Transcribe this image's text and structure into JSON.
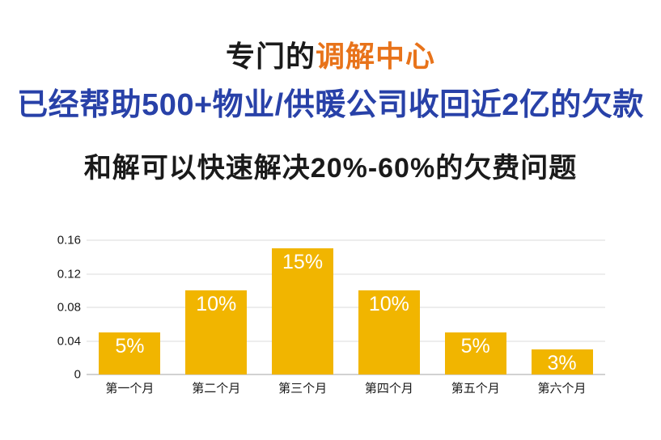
{
  "header": {
    "line1_black": "专门的",
    "line1_orange": "调解中心",
    "line2": "已经帮助500+物业/供暖公司收回近2亿的欠款",
    "line3": "和解可以快速解决20%-60%的欠费问题"
  },
  "colors": {
    "accent_orange": "#E8731A",
    "accent_blue": "#2841A8",
    "text_dark": "#1A1A1A",
    "bar_fill": "#F1B500",
    "bar_label": "#FFFFFF",
    "grid_line": "#DBDBDB",
    "axis_line": "#A6A6A6"
  },
  "chart_data": {
    "type": "bar",
    "categories": [
      "第一个月",
      "第二个月",
      "第三个月",
      "第四个月",
      "第五个月",
      "第六个月"
    ],
    "values": [
      0.05,
      0.1,
      0.15,
      0.1,
      0.05,
      0.03
    ],
    "bar_labels": [
      "5%",
      "10%",
      "15%",
      "10%",
      "5%",
      "3%"
    ],
    "y_ticks": [
      0,
      0.04,
      0.08,
      0.12,
      0.16
    ],
    "y_tick_labels": [
      "0",
      "0.04",
      "0.08",
      "0.12",
      "0.16"
    ],
    "ylim": [
      0,
      0.16
    ],
    "title": "",
    "xlabel": "",
    "ylabel": "",
    "grid": true,
    "legend": false
  }
}
